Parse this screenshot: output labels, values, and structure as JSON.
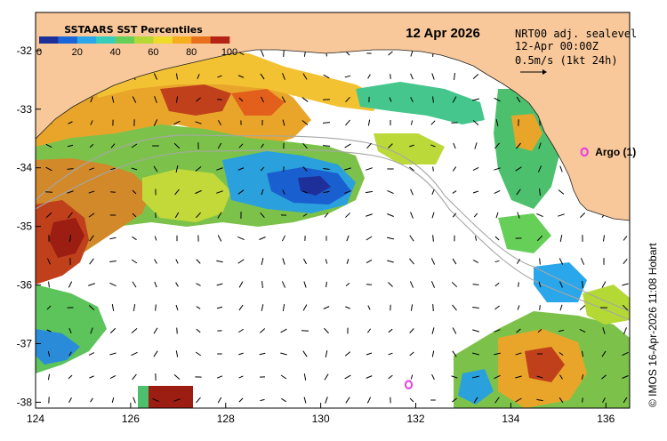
{
  "map": {
    "date_title": "12 Apr 2026",
    "product": {
      "line1": "NRT00 adj. sealevel",
      "line2": "12-Apr 00:00Z",
      "line3": "0.5m/s (1kt 24h)"
    },
    "credit": "© IMOS 16-Apr-2026 11:08 Hobart",
    "x_ticks": [
      "124",
      "126",
      "128",
      "130",
      "132",
      "134",
      "136"
    ],
    "y_ticks": [
      "-32",
      "-33",
      "-34",
      "-35",
      "-36",
      "-37",
      "-38"
    ],
    "x_range": [
      124,
      136.5
    ],
    "y_range": [
      -38.1,
      -31.35
    ]
  },
  "legend": {
    "title": "SSTAARS SST Percentiles",
    "tick_labels": [
      "0",
      "20",
      "40",
      "60",
      "80",
      "100"
    ],
    "colors": [
      "#1f2f9a",
      "#1a66d8",
      "#2aa6ea",
      "#36cdbd",
      "#66cf58",
      "#b4d934",
      "#eedb2a",
      "#f6ad1e",
      "#e8701c",
      "#b42316"
    ]
  },
  "argo_floats": [
    {
      "label": "Argo (1)",
      "lon": 135.55,
      "lat": -33.73
    },
    {
      "label": "",
      "lon": 131.85,
      "lat": -37.7
    }
  ],
  "colors": {
    "land": "#f8c89a",
    "coast": "#222222",
    "argo": "#e83ce6",
    "isobath": "#a6a6a6",
    "vectors": "#000000"
  }
}
